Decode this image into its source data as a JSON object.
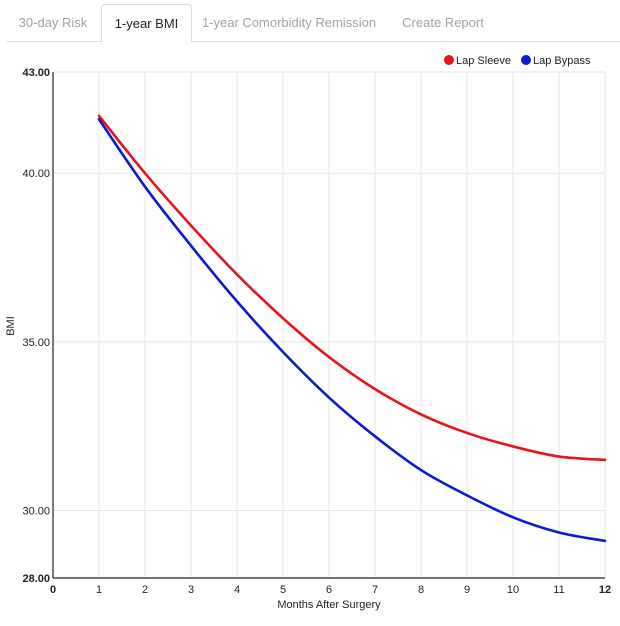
{
  "tabs": [
    {
      "label": "30-day Risk",
      "active": false
    },
    {
      "label": "1-year BMI",
      "active": true
    },
    {
      "label": "1-year Comorbidity Remission",
      "active": false
    },
    {
      "label": "Create Report",
      "active": false
    }
  ],
  "chart_data": {
    "type": "line",
    "xlabel": "Months After Surgery",
    "ylabel": "BMI",
    "xlim": [
      0,
      12
    ],
    "ylim": [
      28,
      43
    ],
    "x_ticks": [
      "0",
      "1",
      "2",
      "3",
      "4",
      "5",
      "6",
      "7",
      "8",
      "9",
      "10",
      "11",
      "12"
    ],
    "y_ticks": [
      "28.00",
      "30.00",
      "35.00",
      "40.00",
      "43.00"
    ],
    "x": [
      1,
      2,
      3,
      4,
      5,
      6,
      7,
      8,
      9,
      10,
      11,
      12
    ],
    "grid": true,
    "legend_position": "top-right",
    "series": [
      {
        "name": "Lap Sleeve",
        "color": "#e8141a",
        "values": [
          41.7,
          40.0,
          38.45,
          37.0,
          35.7,
          34.55,
          33.6,
          32.85,
          32.3,
          31.9,
          31.6,
          31.5
        ]
      },
      {
        "name": "Lap Bypass",
        "color": "#0a1ad0",
        "values": [
          41.6,
          39.6,
          37.85,
          36.2,
          34.7,
          33.35,
          32.2,
          31.2,
          30.45,
          29.8,
          29.35,
          29.1
        ]
      }
    ]
  }
}
